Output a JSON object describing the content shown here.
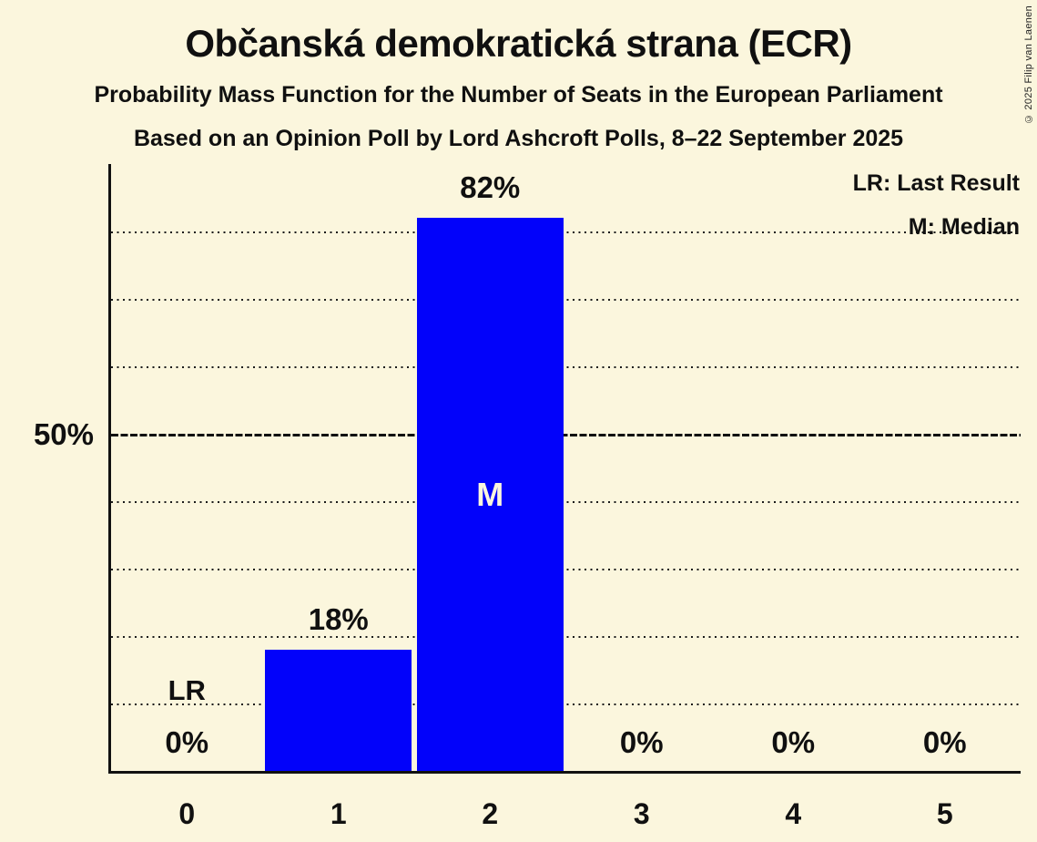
{
  "title": "Občanská demokratická strana (ECR)",
  "subtitle1": "Probability Mass Function for the Number of Seats in the European Parliament",
  "subtitle2": "Based on an Opinion Poll by Lord Ashcroft Polls, 8–22 September 2025",
  "copyright": "© 2025 Filip van Laenen",
  "legend": {
    "lr": "LR: Last Result",
    "m": "M: Median"
  },
  "y_axis": {
    "label": "50%"
  },
  "colors": {
    "background": "#fbf6dd",
    "bar": "#0202fa",
    "text": "#101010",
    "bar_text": "#fbf6dd"
  },
  "chart_data": {
    "type": "bar",
    "title": "Probability Mass Function for the Number of Seats in the European Parliament — Občanská demokratická strana (ECR)",
    "categories": [
      "0",
      "1",
      "2",
      "3",
      "4",
      "5"
    ],
    "values": [
      0,
      18,
      82,
      0,
      0,
      0
    ],
    "value_labels": [
      "0%",
      "18%",
      "82%",
      "0%",
      "0%",
      "0%"
    ],
    "annotations": [
      {
        "seat_index": 0,
        "text": "LR",
        "placement": "above_value_label",
        "meaning": "Last Result"
      },
      {
        "seat_index": 2,
        "text": "M",
        "placement": "bar_center",
        "meaning": "Median"
      }
    ],
    "xlabel": "Number of Seats",
    "ylabel": "Probability",
    "ylim": [
      0,
      90
    ],
    "y_gridlines_pct": [
      10,
      20,
      30,
      40,
      50,
      60,
      70,
      80
    ],
    "solid_gridline_pct": 50,
    "grid": "dotted horizontal",
    "legend_position": "top-right",
    "last_result_seat": 0,
    "median_seat": 2
  }
}
